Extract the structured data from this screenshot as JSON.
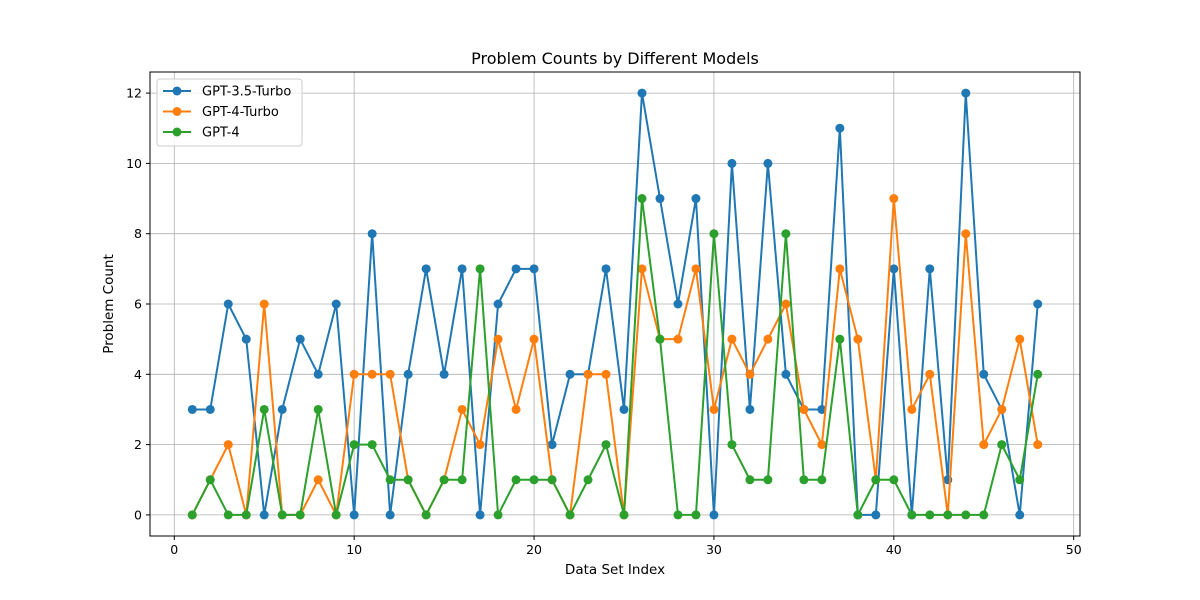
{
  "chart_data": {
    "type": "line",
    "title": "Problem Counts by Different Models",
    "xlabel": "Data Set Index",
    "ylabel": "Problem Count",
    "xlim": [
      -1.35,
      50.35
    ],
    "ylim": [
      -0.6,
      12.6
    ],
    "xticks": [
      0,
      10,
      20,
      30,
      40,
      50
    ],
    "yticks": [
      0,
      2,
      4,
      6,
      8,
      10,
      12
    ],
    "grid": true,
    "legend_position": "top-left",
    "markers": "circle",
    "x": [
      1,
      2,
      3,
      4,
      5,
      6,
      7,
      8,
      9,
      10,
      11,
      12,
      13,
      14,
      15,
      16,
      17,
      18,
      19,
      20,
      21,
      22,
      23,
      24,
      25,
      26,
      27,
      28,
      29,
      30,
      31,
      32,
      33,
      34,
      35,
      36,
      37,
      38,
      39,
      40,
      41,
      42,
      43,
      44,
      45,
      46,
      47,
      48
    ],
    "series": [
      {
        "name": "GPT-3.5-Turbo",
        "color": "#1f77b4",
        "values": [
          3,
          3,
          6,
          5,
          0,
          3,
          5,
          4,
          6,
          0,
          8,
          0,
          4,
          7,
          4,
          7,
          0,
          6,
          7,
          7,
          2,
          4,
          4,
          7,
          3,
          12,
          9,
          6,
          9,
          0,
          10,
          3,
          10,
          4,
          3,
          3,
          11,
          0,
          0,
          7,
          0,
          7,
          1,
          12,
          4,
          3,
          0,
          6
        ]
      },
      {
        "name": "GPT-4-Turbo",
        "color": "#ff7f0e",
        "values": [
          0,
          1,
          2,
          0,
          6,
          0,
          0,
          1,
          0,
          4,
          4,
          4,
          1,
          0,
          1,
          3,
          2,
          5,
          3,
          5,
          1,
          0,
          4,
          4,
          0,
          7,
          5,
          5,
          7,
          3,
          5,
          4,
          5,
          6,
          3,
          2,
          7,
          5,
          1,
          9,
          3,
          4,
          0,
          8,
          2,
          3,
          5,
          2
        ]
      },
      {
        "name": "GPT-4",
        "color": "#2ca02c",
        "values": [
          0,
          1,
          0,
          0,
          3,
          0,
          0,
          3,
          0,
          2,
          2,
          1,
          1,
          0,
          1,
          1,
          7,
          0,
          1,
          1,
          1,
          0,
          1,
          2,
          0,
          9,
          5,
          0,
          0,
          8,
          2,
          1,
          1,
          8,
          1,
          1,
          5,
          0,
          1,
          1,
          0,
          0,
          0,
          0,
          0,
          2,
          1,
          4
        ]
      }
    ]
  }
}
